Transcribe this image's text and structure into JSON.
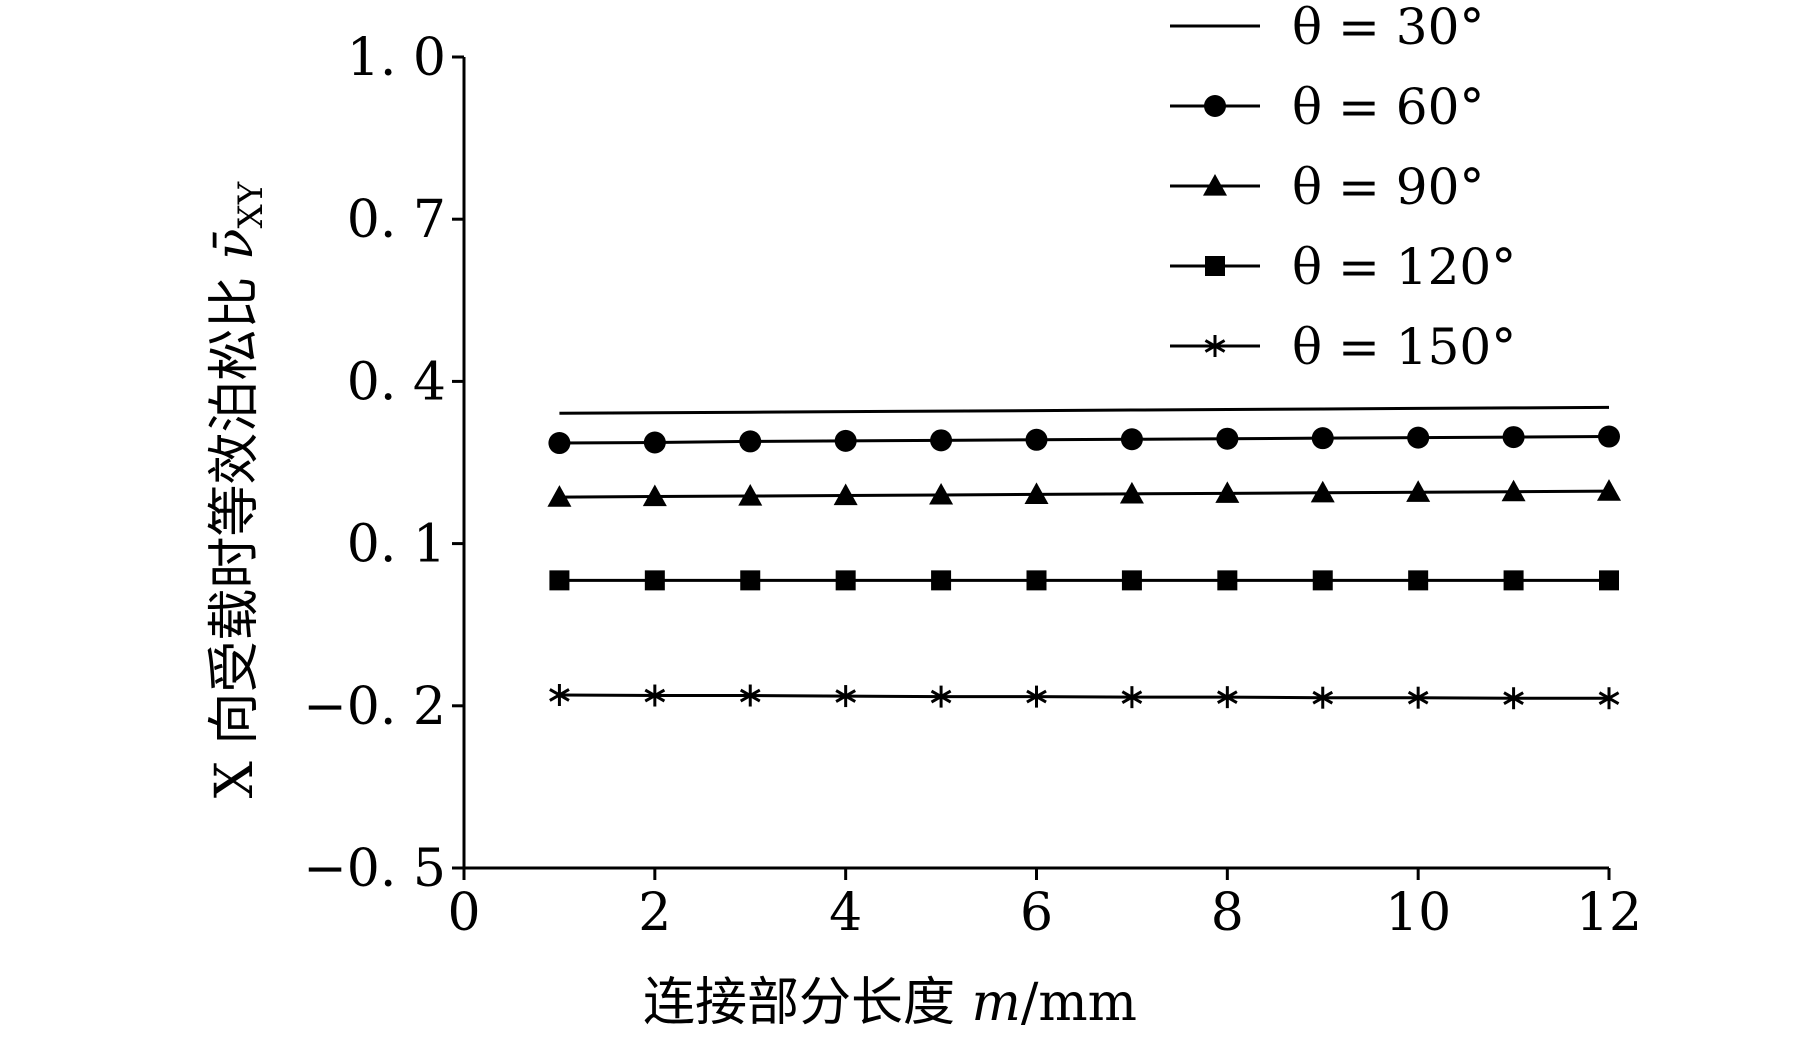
{
  "chart_data": {
    "type": "line",
    "title": "",
    "xlabel": "连接部分长度 m/mm",
    "xlabel_parts": {
      "text": "连接部分长度 ",
      "var": "m",
      "unit": "/mm"
    },
    "ylabel": "X 向受载时等效泊松比 ν̄XY",
    "ylabel_parts": {
      "text": "X 向受载时等效泊松比 ",
      "var": "ν̄",
      "sub": "XY"
    },
    "xlim": [
      0,
      12
    ],
    "ylim": [
      -0.5,
      1.0
    ],
    "x_ticks": [
      0,
      2,
      4,
      6,
      8,
      10,
      12
    ],
    "x_tick_labels": [
      "0",
      "2",
      "4",
      "6",
      "8",
      "10",
      "12"
    ],
    "y_ticks": [
      -0.5,
      -0.2,
      0.1,
      0.4,
      0.7,
      1.0
    ],
    "y_tick_labels": [
      "−0. 5",
      "−0. 2",
      "0. 1",
      "0. 4",
      "0. 7",
      "1. 0"
    ],
    "grid": false,
    "legend_position": "top-right",
    "x": [
      1,
      2,
      3,
      4,
      5,
      6,
      7,
      8,
      9,
      10,
      11,
      12
    ],
    "series": [
      {
        "name": "θ = 30°",
        "marker": "none",
        "values": [
          0.341,
          0.342,
          0.343,
          0.344,
          0.345,
          0.346,
          0.347,
          0.348,
          0.349,
          0.35,
          0.351,
          0.352
        ]
      },
      {
        "name": "θ = 60°",
        "marker": "circle",
        "values": [
          0.286,
          0.287,
          0.289,
          0.29,
          0.291,
          0.292,
          0.293,
          0.294,
          0.295,
          0.296,
          0.297,
          0.298
        ]
      },
      {
        "name": "θ = 90°",
        "marker": "triangle",
        "values": [
          0.186,
          0.187,
          0.188,
          0.189,
          0.19,
          0.191,
          0.192,
          0.193,
          0.194,
          0.195,
          0.196,
          0.197
        ]
      },
      {
        "name": "θ = 120°",
        "marker": "square",
        "values": [
          0.032,
          0.032,
          0.032,
          0.032,
          0.032,
          0.032,
          0.032,
          0.032,
          0.032,
          0.032,
          0.032,
          0.032
        ]
      },
      {
        "name": "θ = 150°",
        "marker": "asterisk",
        "values": [
          -0.18,
          -0.181,
          -0.181,
          -0.182,
          -0.183,
          -0.183,
          -0.184,
          -0.184,
          -0.185,
          -0.185,
          -0.186,
          -0.186
        ]
      }
    ]
  }
}
